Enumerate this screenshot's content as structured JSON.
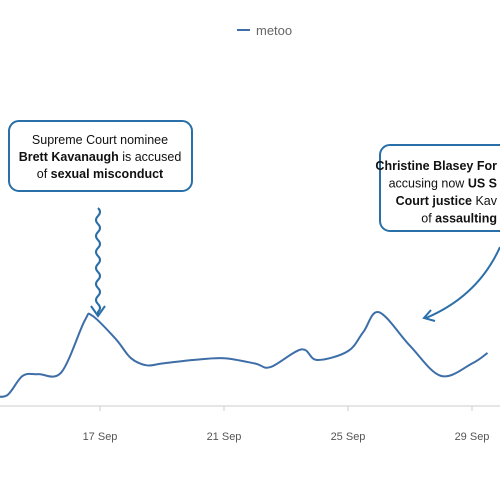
{
  "chart_data": {
    "type": "line",
    "title": "",
    "xlabel": "",
    "ylabel": "",
    "legend": {
      "placement": "top-center",
      "entries": [
        "metoo"
      ]
    },
    "grid": false,
    "x_tick_labels": [
      "17 Sep",
      "21 Sep",
      "25 Sep",
      "29 Sep"
    ],
    "x_tick_dates": [
      "2018-09-17",
      "2018-09-21",
      "2018-09-25",
      "2018-09-29"
    ],
    "series": [
      {
        "name": "metoo",
        "color": "#3d6ea8",
        "points": [
          {
            "x": "2018-09-13 12:00",
            "y": 6
          },
          {
            "x": "2018-09-14 00:00",
            "y": 6
          },
          {
            "x": "2018-09-14 12:00",
            "y": 17
          },
          {
            "x": "2018-09-15 00:00",
            "y": 18
          },
          {
            "x": "2018-09-15 18:00",
            "y": 19
          },
          {
            "x": "2018-09-16 12:00",
            "y": 48
          },
          {
            "x": "2018-09-16 18:00",
            "y": 51
          },
          {
            "x": "2018-09-17 12:00",
            "y": 38
          },
          {
            "x": "2018-09-18 00:00",
            "y": 27
          },
          {
            "x": "2018-09-18 12:00",
            "y": 23
          },
          {
            "x": "2018-09-19 00:00",
            "y": 24
          },
          {
            "x": "2018-09-20 00:00",
            "y": 26
          },
          {
            "x": "2018-09-21 00:00",
            "y": 27
          },
          {
            "x": "2018-09-22 00:00",
            "y": 24
          },
          {
            "x": "2018-09-22 12:00",
            "y": 22
          },
          {
            "x": "2018-09-23 12:00",
            "y": 32
          },
          {
            "x": "2018-09-24 00:00",
            "y": 26
          },
          {
            "x": "2018-09-25 00:00",
            "y": 31
          },
          {
            "x": "2018-09-25 12:00",
            "y": 42
          },
          {
            "x": "2018-09-26 00:00",
            "y": 53
          },
          {
            "x": "2018-09-27 00:00",
            "y": 34
          },
          {
            "x": "2018-09-28 00:00",
            "y": 17
          },
          {
            "x": "2018-09-29 00:00",
            "y": 24
          },
          {
            "x": "2018-09-29 12:00",
            "y": 30
          }
        ]
      }
    ],
    "annotations": [
      {
        "lines": [
          [
            {
              "text": "Supreme Court nominee",
              "bold": false
            }
          ],
          [
            {
              "text": "Brett Kavanaugh",
              "bold": true
            },
            {
              "text": " is accused",
              "bold": false
            }
          ],
          [
            {
              "text": "of ",
              "bold": false
            },
            {
              "text": "sexual misconduct",
              "bold": true
            }
          ]
        ]
      },
      {
        "lines": [
          [
            {
              "text": "Christine Blasey For",
              "bold": true
            }
          ],
          [
            {
              "text": "accusing now ",
              "bold": false
            },
            {
              "text": "US S",
              "bold": true
            }
          ],
          [
            {
              "text": "Court justice",
              "bold": true
            },
            {
              "text": " Kav",
              "bold": false
            }
          ],
          [
            {
              "text": "of ",
              "bold": false
            },
            {
              "text": "assaulting",
              "bold": true
            }
          ]
        ]
      }
    ]
  }
}
